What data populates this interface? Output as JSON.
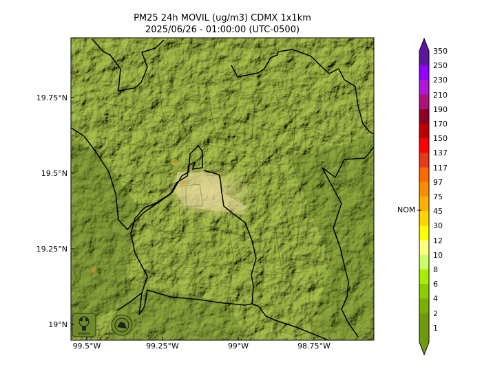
{
  "map": {
    "title_line1": "PM25 24h MOVIL (ug/m3) CDMX 1x1km",
    "title_line2": "2025/06/26 - 01:00:00 (UTC-0500)",
    "lat_labels": [
      "19.75°N",
      "19.5°N",
      "19.25°N",
      "19°N"
    ],
    "lon_labels": [
      "99.5°W",
      "99.25°W",
      "99°W",
      "98.75°W"
    ],
    "logos": [
      "sedema-logo",
      "cdmx-seal"
    ]
  },
  "colorbar": {
    "labels": [
      "350",
      "250",
      "230",
      "210",
      "190",
      "170",
      "150",
      "137",
      "117",
      "97",
      "75",
      "45",
      "30",
      "12",
      "10",
      "8",
      "6",
      "4",
      "2",
      "1"
    ],
    "colors": [
      "#5a169c",
      "#9400ff",
      "#b018d8",
      "#b0107c",
      "#8c0024",
      "#c00000",
      "#ff0000",
      "#e53b1a",
      "#ff6a00",
      "#ff8c00",
      "#ffb000",
      "#ffd400",
      "#ffff00",
      "#ffff80",
      "#ccff66",
      "#a8ee00",
      "#8ccc00",
      "#7ab000",
      "#6e9a10",
      "#6e9a10"
    ],
    "threshold_label": "NOM",
    "threshold_value": "45"
  }
}
